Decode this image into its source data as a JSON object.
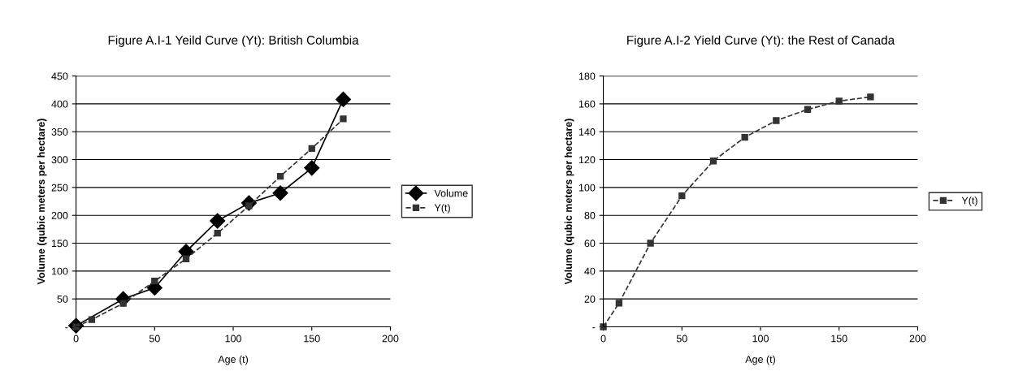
{
  "chart_data": [
    {
      "type": "line",
      "title": "Figure A.I-1 Yeild Curve (Yt): British Columbia",
      "xlabel": "Age (t)",
      "ylabel": "Volume (qubic meters per hectare)",
      "series": [
        {
          "name": "Volume",
          "color": "#000000",
          "marker": "diamond",
          "line_style": "solid",
          "x": [
            0,
            30,
            50,
            70,
            90,
            110,
            130,
            150,
            170
          ],
          "values": [
            2,
            50,
            70,
            135,
            190,
            222,
            240,
            285,
            408
          ]
        },
        {
          "name": "Y(t)",
          "color": "#333333",
          "marker": "square",
          "line_style": "dashed",
          "x": [
            0,
            10,
            30,
            50,
            70,
            90,
            110,
            130,
            150,
            170
          ],
          "values": [
            0,
            13,
            42,
            82,
            122,
            168,
            217,
            270,
            320,
            373
          ]
        }
      ],
      "xlim": [
        0,
        200
      ],
      "xticks": [
        0,
        50,
        100,
        150,
        200
      ],
      "ylim": [
        0,
        450
      ],
      "yticks": [
        {
          "value": 0,
          "label": "-"
        },
        50,
        100,
        150,
        200,
        250,
        300,
        350,
        400,
        450
      ],
      "grid": "y",
      "legend": "right"
    },
    {
      "type": "line",
      "title": "Figure A.I-2 Yield Curve (Yt): the Rest of Canada",
      "xlabel": "Age (t)",
      "ylabel": "Volume (qubic meters per hectare)",
      "series": [
        {
          "name": "Y(t)",
          "color": "#333333",
          "marker": "square",
          "line_style": "dashed",
          "x": [
            0,
            10,
            30,
            50,
            70,
            90,
            110,
            130,
            150,
            170
          ],
          "values": [
            0,
            17,
            60,
            94,
            119,
            136,
            148,
            156,
            162,
            165
          ]
        }
      ],
      "xlim": [
        0,
        200
      ],
      "xticks": [
        0,
        50,
        100,
        150,
        200
      ],
      "ylim": [
        0,
        180
      ],
      "yticks": [
        {
          "value": 0,
          "label": "-"
        },
        20,
        40,
        60,
        80,
        100,
        120,
        140,
        160,
        180
      ],
      "grid": "y",
      "legend": "right"
    }
  ]
}
